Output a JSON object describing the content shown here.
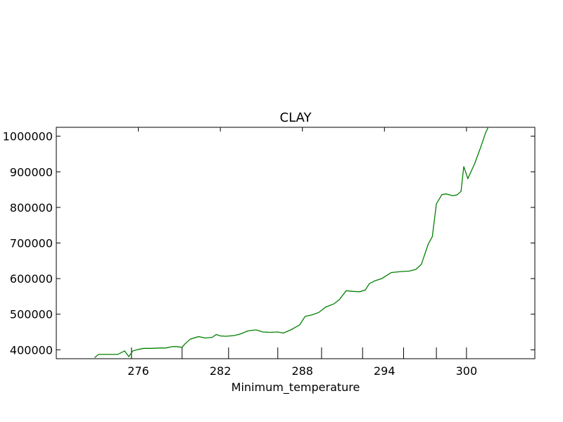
{
  "chart_data": {
    "type": "line",
    "title": "CLAY",
    "xlabel": "Minimum_temperature",
    "ylabel": "",
    "xlim": [
      270,
      305
    ],
    "ylim": [
      375000,
      1025000
    ],
    "grid": false,
    "x_ticks": [
      276,
      282,
      288,
      294,
      300
    ],
    "x_tick_labels": [
      "276",
      "282",
      "288",
      "294",
      "300"
    ],
    "y_ticks": [
      400000,
      500000,
      600000,
      700000,
      800000,
      900000,
      1000000
    ],
    "y_tick_labels": [
      "400000",
      "500000",
      "600000",
      "700000",
      "800000",
      "900000",
      "1000000"
    ],
    "rug_x": [
      275.5,
      279.2,
      282.6,
      286.2,
      289.4,
      292.4,
      295.4,
      297.8,
      300.0
    ],
    "series": [
      {
        "color": "#008000",
        "x": [
          272.8,
          273.1,
          274.0,
          274.5,
          275.0,
          275.3,
          275.6,
          276.0,
          276.4,
          277.0,
          277.5,
          278.0,
          278.5,
          278.8,
          279.2,
          279.4,
          279.8,
          280.4,
          280.9,
          281.4,
          281.7,
          282.0,
          282.4,
          283.0,
          283.5,
          284.0,
          284.6,
          285.1,
          285.6,
          286.2,
          286.6,
          287.2,
          287.8,
          288.2,
          288.7,
          289.2,
          289.7,
          290.3,
          290.7,
          291.2,
          291.7,
          292.2,
          292.6,
          292.9,
          293.3,
          293.8,
          294.5,
          295.3,
          295.8,
          296.3,
          296.7,
          297.2,
          297.5,
          297.8,
          298.2,
          298.5,
          299.0,
          299.3,
          299.6,
          299.8,
          300.1,
          300.6,
          301.0,
          301.4,
          301.6
        ],
        "values": [
          378000,
          387000,
          387000,
          387000,
          397000,
          381000,
          397000,
          401000,
          404000,
          404000,
          405000,
          405000,
          409000,
          409000,
          407000,
          416000,
          430000,
          437000,
          433000,
          435000,
          443000,
          439000,
          438000,
          440000,
          445000,
          453000,
          456000,
          450000,
          449000,
          450000,
          447000,
          457000,
          470000,
          494000,
          498000,
          505000,
          520000,
          529000,
          541000,
          566000,
          564000,
          563000,
          568000,
          586000,
          594000,
          600000,
          617000,
          620000,
          621000,
          626000,
          640000,
          697000,
          718000,
          810000,
          836000,
          838000,
          833000,
          835000,
          845000,
          915000,
          881000,
          923000,
          965000,
          1010000,
          1026000
        ]
      }
    ]
  }
}
